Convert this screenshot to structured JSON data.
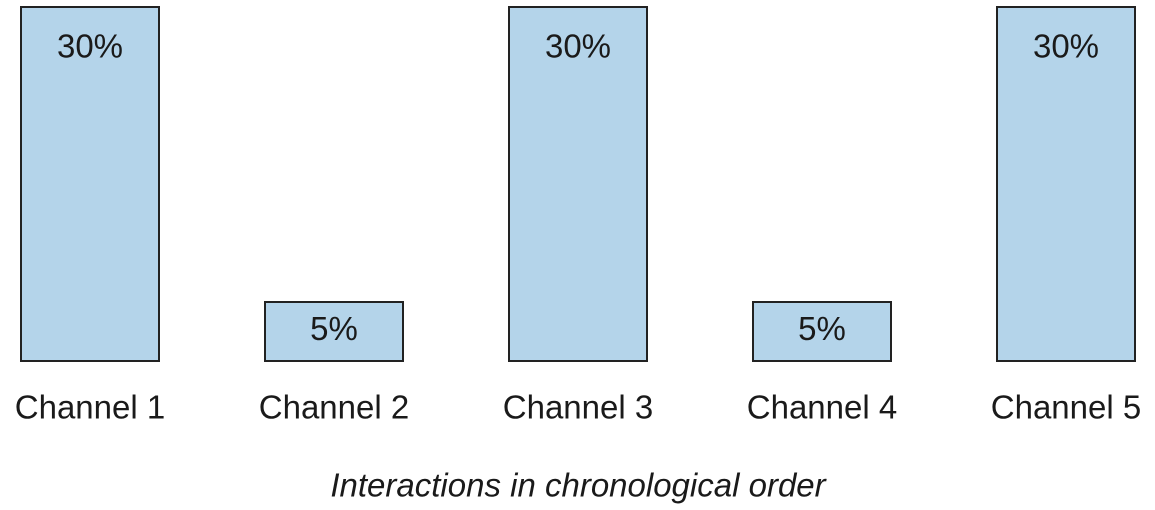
{
  "chart_data": {
    "type": "bar",
    "categories": [
      "Channel 1",
      "Channel 2",
      "Channel 3",
      "Channel 4",
      "Channel 5"
    ],
    "values": [
      30,
      5,
      30,
      5,
      30
    ],
    "value_labels": [
      "30%",
      "5%",
      "30%",
      "5%",
      "30%"
    ],
    "color": "#b4d4ea",
    "x_label": "Interactions in chronological order"
  }
}
